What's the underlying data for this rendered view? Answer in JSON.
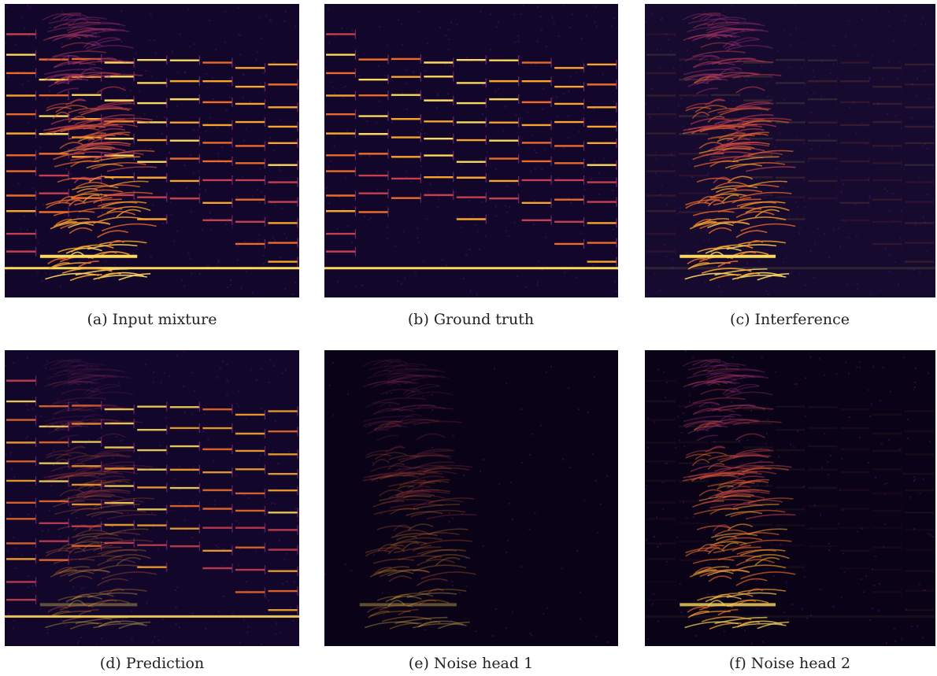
{
  "figure": {
    "panels": [
      {
        "caption": "(a) Input mixture"
      },
      {
        "caption": "(b) Ground truth"
      },
      {
        "caption": "(c) Interference"
      },
      {
        "caption": "(d) Prediction"
      },
      {
        "caption": "(e) Noise head 1"
      },
      {
        "caption": "(f) Noise head 2"
      }
    ]
  }
}
